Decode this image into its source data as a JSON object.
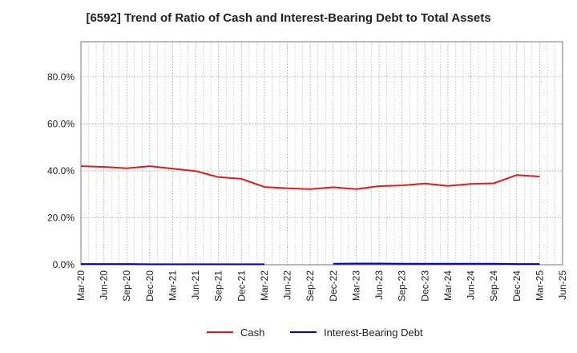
{
  "chart_data": {
    "type": "line",
    "title": "[6592]  Trend of Ratio of Cash and Interest-Bearing Debt to Total Assets",
    "xlabel": "",
    "ylabel": "",
    "ylim": [
      0,
      95
    ],
    "yticks": [
      0,
      20,
      40,
      60,
      80
    ],
    "ytick_labels": [
      "0.0%",
      "20.0%",
      "40.0%",
      "60.0%",
      "80.0%"
    ],
    "xtick_labels": [
      "Mar-20",
      "Jun-20",
      "Sep-20",
      "Dec-20",
      "Mar-21",
      "Jun-21",
      "Sep-21",
      "Dec-21",
      "Mar-22",
      "Jun-22",
      "Sep-22",
      "Dec-22",
      "Mar-23",
      "Jun-23",
      "Sep-23",
      "Dec-23",
      "Mar-24",
      "Jun-24",
      "Sep-24",
      "Dec-24",
      "Mar-25",
      "Jun-25"
    ],
    "grid": true,
    "legend_position": "bottom",
    "series": [
      {
        "name": "Cash",
        "color": "#e31a1c",
        "values": [
          42.0,
          41.7,
          41.1,
          42.0,
          40.9,
          39.9,
          37.3,
          36.6,
          33.1,
          32.6,
          32.2,
          33.0,
          32.2,
          33.5,
          33.8,
          34.6,
          33.6,
          34.4,
          34.7,
          38.2,
          37.6,
          null
        ]
      },
      {
        "name": "Interest-Bearing Debt",
        "color": "#0000cc",
        "values": [
          0.3,
          0.3,
          0.3,
          0.2,
          0.2,
          0.2,
          0.2,
          0.2,
          0.2,
          null,
          null,
          0.4,
          0.5,
          0.5,
          0.4,
          0.4,
          0.4,
          0.4,
          0.4,
          0.3,
          0.3,
          null
        ]
      }
    ]
  }
}
